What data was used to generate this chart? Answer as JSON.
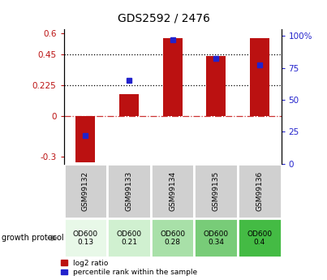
{
  "title": "GDS2592 / 2476",
  "samples": [
    "GSM99132",
    "GSM99133",
    "GSM99134",
    "GSM99135",
    "GSM99136"
  ],
  "log2_ratio": [
    -0.34,
    0.16,
    0.565,
    0.435,
    0.565
  ],
  "percentile_rank": [
    22,
    65,
    97,
    82,
    77
  ],
  "protocol_label": "growth protocol",
  "protocol_values": [
    "OD600\n0.13",
    "OD600\n0.21",
    "OD600\n0.28",
    "OD600\n0.34",
    "OD600\n0.4"
  ],
  "protocol_colors": [
    "#e8f8e8",
    "#d0f0d0",
    "#a8e0a8",
    "#78cc78",
    "#44bb44"
  ],
  "bar_color": "#bb1111",
  "dot_color": "#2222cc",
  "left_yticks": [
    -0.3,
    0,
    0.225,
    0.45,
    0.6
  ],
  "right_yticks": [
    0,
    25,
    50,
    75,
    100
  ],
  "ylim_left": [
    -0.35,
    0.63
  ],
  "ylim_right": [
    0,
    105
  ],
  "hlines_dotted": [
    0.225,
    0.45
  ],
  "hline_dashed_color": "#cc3333",
  "background_color": "#ffffff",
  "sample_bg_color": "#d0d0d0",
  "cell_border_color": "#ffffff"
}
